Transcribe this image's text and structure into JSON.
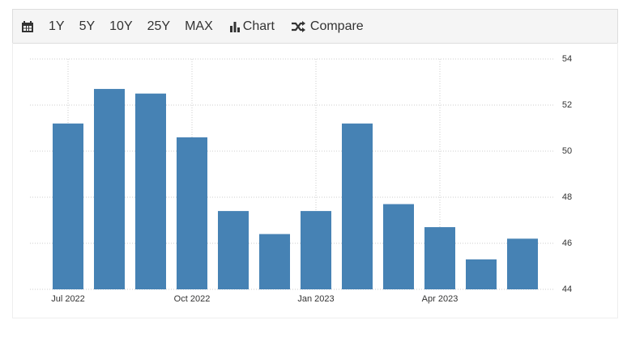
{
  "toolbar": {
    "ranges": [
      "1Y",
      "5Y",
      "10Y",
      "25Y",
      "MAX"
    ],
    "chart": "Chart",
    "compare": "Compare"
  },
  "chart_data": {
    "type": "bar",
    "categories": [
      "Jul 2022",
      null,
      null,
      "Oct 2022",
      null,
      null,
      "Jan 2023",
      null,
      null,
      "Apr 2023",
      null,
      null
    ],
    "values": [
      51.2,
      52.7,
      52.5,
      50.6,
      47.4,
      46.4,
      47.4,
      51.2,
      47.7,
      46.7,
      45.3,
      46.2
    ],
    "color": "#4682b4",
    "ylim": [
      44,
      54
    ],
    "yticks": [
      44,
      46,
      48,
      50,
      52,
      54
    ],
    "grid": true
  }
}
